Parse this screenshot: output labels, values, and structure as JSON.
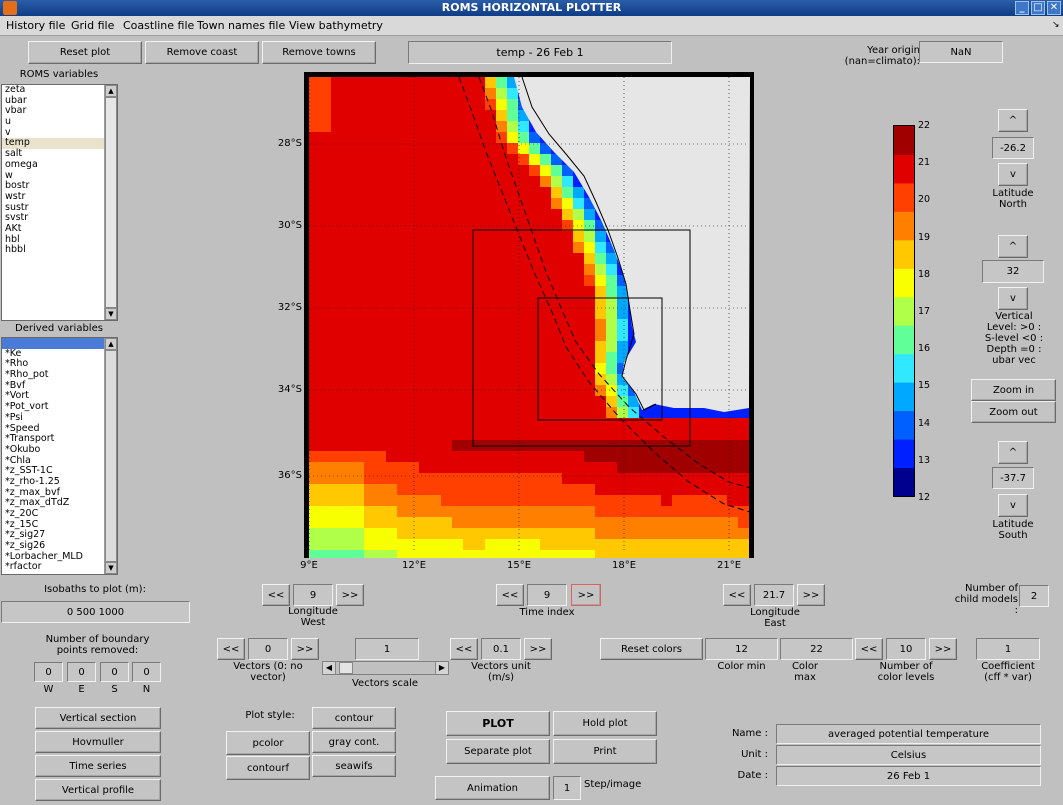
{
  "window": {
    "title": "ROMS HORIZONTAL PLOTTER"
  },
  "menu": [
    "History file",
    "Grid file",
    "Coastline file",
    "Town names file",
    "View bathymetry"
  ],
  "toolbar": {
    "reset_plot": "Reset plot",
    "remove_coast": "Remove coast",
    "remove_towns": "Remove towns",
    "plot_title": "temp - 26 Feb 1"
  },
  "year_origin": {
    "label": "Year origin (nan=climato):",
    "value": "NaN"
  },
  "roms_variables": {
    "label": "ROMS variables",
    "selected": "temp",
    "items": [
      "zeta",
      "ubar",
      "vbar",
      "u",
      "v",
      "temp",
      "salt",
      "omega",
      "w",
      "bostr",
      "wstr",
      "sustr",
      "svstr",
      "AKt",
      "hbl",
      "hbbl"
    ]
  },
  "derived_variables": {
    "label": "Derived variables",
    "items": [
      "",
      "*Ke",
      "*Rho",
      "*Rho_pot",
      "*Bvf",
      "*Vort",
      "*Pot_vort",
      "*Psi",
      "*Speed",
      "*Transport",
      "*Okubo",
      "*Chla",
      "*z_SST-1C",
      "*z_rho-1.25",
      "*z_max_bvf",
      "*z_max_dTdZ",
      "*z_20C",
      "*z_15C",
      "*z_sig27",
      "*z_sig26",
      "*Lorbacher_MLD",
      "*rfactor"
    ]
  },
  "isobaths": {
    "label": "Isobaths to plot (m):",
    "value": "0 500 1000"
  },
  "boundary": {
    "label": "Number of boundary points removed:",
    "values": [
      "0",
      "0",
      "0",
      "0"
    ],
    "dirs": [
      "W",
      "E",
      "S",
      "N"
    ]
  },
  "map": {
    "lat_ticks": [
      "28°S",
      "30°S",
      "32°S",
      "34°S",
      "36°S"
    ],
    "lon_ticks": [
      "9°E",
      "12°E",
      "15°E",
      "18°E",
      "21°E"
    ],
    "colormap": [
      "#00008f",
      "#0020ff",
      "#0060ff",
      "#00a8ff",
      "#30e8ff",
      "#60ff98",
      "#b0ff48",
      "#f8ff00",
      "#ffc800",
      "#ff8000",
      "#ff4000",
      "#e00000",
      "#a00000"
    ]
  },
  "colorbar": {
    "ticks": [
      "22",
      "21",
      "20",
      "19",
      "18",
      "17",
      "16",
      "15",
      "14",
      "13",
      "12"
    ]
  },
  "lat_north": {
    "up": "^",
    "value": "-26.2",
    "down": "v",
    "label": "Latitude North"
  },
  "vertical_level": {
    "up": "^",
    "value": "32",
    "down": "v",
    "label": "Vertical Level: >0 : S-level <0 : Depth =0 : ubar vec"
  },
  "zoom": {
    "in": "Zoom in",
    "out": "Zoom out"
  },
  "lat_south": {
    "up": "^",
    "value": "-37.7",
    "down": "v",
    "label": "Latitude South"
  },
  "lon_west": {
    "prev": "<<",
    "value": "9",
    "next": ">>",
    "label": "Longitude West"
  },
  "time_index": {
    "prev": "<<",
    "value": "9",
    "next": ">>",
    "label": "Time index"
  },
  "lon_east": {
    "prev": "<<",
    "value": "21.7",
    "next": ">>",
    "label": "Longitude East"
  },
  "child_models": {
    "label": "Number of child models :",
    "value": "2"
  },
  "vectors": {
    "prev": "<<",
    "value": "0",
    "next": ">>",
    "label": "Vectors (0: no vector)"
  },
  "vectors_scale": {
    "value": "1",
    "label": "Vectors scale",
    "left": "◀",
    "right": "▶"
  },
  "vectors_unit": {
    "prev": "<<",
    "value": "0.1",
    "next": ">>",
    "label": "Vectors unit (m/s)"
  },
  "colors": {
    "reset": "Reset colors",
    "min_value": "12",
    "min_label": "Color min",
    "max_value": "22",
    "max_label": "Color max",
    "levels_prev": "<<",
    "levels_value": "10",
    "levels_next": ">>",
    "levels_label": "Number of color levels",
    "coef_value": "1",
    "coef_label": "Coefficient (cff * var)"
  },
  "section_buttons": [
    "Vertical section",
    "Hovmuller",
    "Time series",
    "Vertical profile"
  ],
  "plot_style": {
    "label": "Plot style:",
    "pcolor": "pcolor",
    "contourf": "contourf",
    "contour": "contour",
    "gray": "gray cont.",
    "seawifs": "seawifs"
  },
  "actions": {
    "plot": "PLOT",
    "hold": "Hold plot",
    "separate": "Separate plot",
    "print": "Print",
    "animation": "Animation",
    "step_value": "1",
    "step_label": "Step/image"
  },
  "info": {
    "name_label": "Name :",
    "name": "averaged potential temperature",
    "unit_label": "Unit :",
    "unit": "Celsius",
    "date_label": "Date :",
    "date": "26 Feb 1"
  }
}
